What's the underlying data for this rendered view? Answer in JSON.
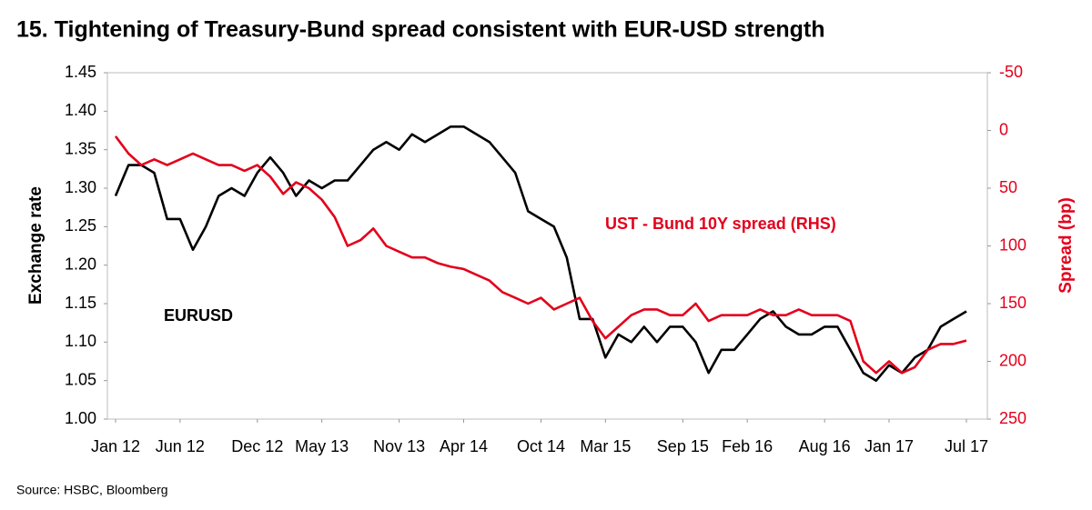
{
  "chart_data": {
    "type": "line",
    "title": "15. Tightening of Treasury-Bund spread consistent with EUR-USD strength",
    "ylabel": "Exchange rate",
    "y2label": "Spread (bp)",
    "y2label_color": "#e3001b",
    "source": "Source:  HSBC, Bloomberg",
    "annotations": [
      {
        "text": "EURUSD",
        "color": "#000000"
      },
      {
        "text": "UST - Bund 10Y spread (RHS)",
        "color": "#e3001b"
      }
    ],
    "x": [
      "Jan 12",
      "Feb 12",
      "Mar 12",
      "Apr 12",
      "May 12",
      "Jun 12",
      "Jul 12",
      "Aug 12",
      "Sep 12",
      "Oct 12",
      "Nov 12",
      "Dec 12",
      "Jan 13",
      "Feb 13",
      "Mar 13",
      "Apr 13",
      "May 13",
      "Jun 13",
      "Jul 13",
      "Aug 13",
      "Sep 13",
      "Oct 13",
      "Nov 13",
      "Dec 13",
      "Jan 14",
      "Feb 14",
      "Mar 14",
      "Apr 14",
      "May 14",
      "Jun 14",
      "Jul 14",
      "Aug 14",
      "Sep 14",
      "Oct 14",
      "Nov 14",
      "Dec 14",
      "Jan 15",
      "Feb 15",
      "Mar 15",
      "Apr 15",
      "May 15",
      "Jun 15",
      "Jul 15",
      "Aug 15",
      "Sep 15",
      "Oct 15",
      "Nov 15",
      "Dec 15",
      "Jan 16",
      "Feb 16",
      "Mar 16",
      "Apr 16",
      "May 16",
      "Jun 16",
      "Jul 16",
      "Aug 16",
      "Sep 16",
      "Oct 16",
      "Nov 16",
      "Dec 16",
      "Jan 17",
      "Feb 17",
      "Mar 17",
      "Apr 17",
      "May 17",
      "Jun 17",
      "Jul 17"
    ],
    "xticks": [
      "Jan 12",
      "Jun 12",
      "Dec 12",
      "May 13",
      "Nov 13",
      "Apr 14",
      "Oct 14",
      "Mar 15",
      "Sep 15",
      "Feb 16",
      "Aug 16",
      "Jan 17",
      "Jul 17"
    ],
    "series": [
      {
        "name": "EURUSD",
        "color": "#000000",
        "values": [
          1.29,
          1.33,
          1.33,
          1.32,
          1.26,
          1.26,
          1.22,
          1.25,
          1.29,
          1.3,
          1.29,
          1.32,
          1.34,
          1.32,
          1.29,
          1.31,
          1.3,
          1.31,
          1.31,
          1.33,
          1.35,
          1.36,
          1.35,
          1.37,
          1.36,
          1.37,
          1.38,
          1.38,
          1.37,
          1.36,
          1.34,
          1.32,
          1.27,
          1.26,
          1.25,
          1.21,
          1.13,
          1.13,
          1.08,
          1.11,
          1.1,
          1.12,
          1.1,
          1.12,
          1.12,
          1.1,
          1.06,
          1.09,
          1.09,
          1.11,
          1.13,
          1.14,
          1.12,
          1.11,
          1.11,
          1.12,
          1.12,
          1.09,
          1.06,
          1.05,
          1.07,
          1.06,
          1.08,
          1.09,
          1.12,
          1.13,
          1.14
        ]
      },
      {
        "name": "UST - Bund 10Y spread",
        "color": "#e3001b",
        "axis": "y2",
        "values": [
          5,
          20,
          30,
          25,
          30,
          25,
          20,
          25,
          30,
          30,
          35,
          30,
          40,
          55,
          45,
          50,
          60,
          75,
          100,
          95,
          85,
          100,
          105,
          110,
          110,
          115,
          118,
          120,
          125,
          130,
          140,
          145,
          150,
          145,
          155,
          150,
          145,
          165,
          180,
          170,
          160,
          155,
          155,
          160,
          160,
          150,
          165,
          160,
          160,
          160,
          155,
          160,
          160,
          155,
          160,
          160,
          160,
          165,
          200,
          210,
          200,
          210,
          205,
          190,
          185,
          185,
          182
        ]
      }
    ],
    "ylim": [
      1.0,
      1.45
    ],
    "yticks": [
      {
        "value": 1.0,
        "label": "1.00"
      },
      1.05,
      {
        "value": 1.1,
        "label": "1.10"
      },
      1.15,
      {
        "value": 1.2,
        "label": "1.20"
      },
      1.25,
      {
        "value": 1.3,
        "label": "1.30"
      },
      1.35,
      {
        "value": 1.4,
        "label": "1.40"
      },
      1.45
    ],
    "y2lim": [
      250,
      -50
    ],
    "y2ticks": [
      250,
      200,
      150,
      100,
      50,
      0,
      -50
    ],
    "y2_color": "#e3001b",
    "grid": false
  }
}
